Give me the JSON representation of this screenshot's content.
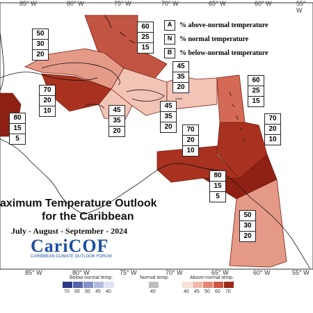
{
  "map": {
    "title_line1": "aximum Temperature Outlook",
    "title_line2": "for the Caribbean",
    "dates": "July - August - September - 2024",
    "logo_text": "CariCOF",
    "logo_subtitle": "CARIBBEAN CLIMATE OUTLOOK FORUM",
    "longitude_labels": [
      "85° W",
      "80° W",
      "75° W",
      "70° W",
      "65° W",
      "60° W",
      "55° W"
    ]
  },
  "legend": {
    "items": [
      {
        "key": "A",
        "label": "% above-normal temperature"
      },
      {
        "key": "N",
        "label": "% normal temperature"
      },
      {
        "key": "B",
        "label": "% below-normal temperature"
      }
    ]
  },
  "regions": [
    {
      "name": "bahamas",
      "above": "60",
      "normal": "25",
      "below": "15",
      "color": "#c25443"
    },
    {
      "name": "cuba",
      "above": "50",
      "normal": "30",
      "below": "20",
      "color": "#e49a87"
    },
    {
      "name": "cayman-jamaica",
      "above": "70",
      "normal": "20",
      "below": "10",
      "color": "#a8321f"
    },
    {
      "name": "belize",
      "above": "80",
      "normal": "15",
      "below": "5",
      "color": "#8f2014"
    },
    {
      "name": "jamaica-south",
      "above": "45",
      "normal": "35",
      "below": "20",
      "color": "#f2c4b6"
    },
    {
      "name": "hispaniola",
      "above": "45",
      "normal": "35",
      "below": "20",
      "color": "#f2c4b6"
    },
    {
      "name": "puerto-rico",
      "above": "45",
      "normal": "35",
      "below": "20",
      "color": "#f2c4b6"
    },
    {
      "name": "lesser-antilles-north",
      "above": "60",
      "normal": "25",
      "below": "15",
      "color": "#d46a56"
    },
    {
      "name": "lesser-antilles-south",
      "above": "70",
      "normal": "20",
      "below": "10",
      "color": "#a8321f"
    },
    {
      "name": "abc-islands",
      "above": "70",
      "normal": "20",
      "below": "10",
      "color": "#a8321f"
    },
    {
      "name": "trinidad",
      "above": "80",
      "normal": "15",
      "below": "5",
      "color": "#8f2014"
    },
    {
      "name": "guianas",
      "above": "50",
      "normal": "30",
      "below": "20",
      "color": "#e49a87"
    }
  ],
  "colorbar": {
    "below_title": "Below-normal temp.",
    "normal_title": "Normal temp.",
    "above_title": "Above-normal temp.",
    "below_values": [
      "70",
      "60",
      "50",
      "45",
      "40"
    ],
    "normal_values": [
      "40"
    ],
    "above_values": [
      "40",
      "45",
      "50",
      "60",
      "70"
    ],
    "below_colors": [
      "#2d3a86",
      "#5663ad",
      "#8690c9",
      "#b4bbe0",
      "#dfe2f2"
    ],
    "normal_colors": [
      "#bdbdbd"
    ],
    "above_colors": [
      "#f9e0d9",
      "#f2b9a9",
      "#e48670",
      "#cc5641",
      "#9b2a1a"
    ]
  }
}
